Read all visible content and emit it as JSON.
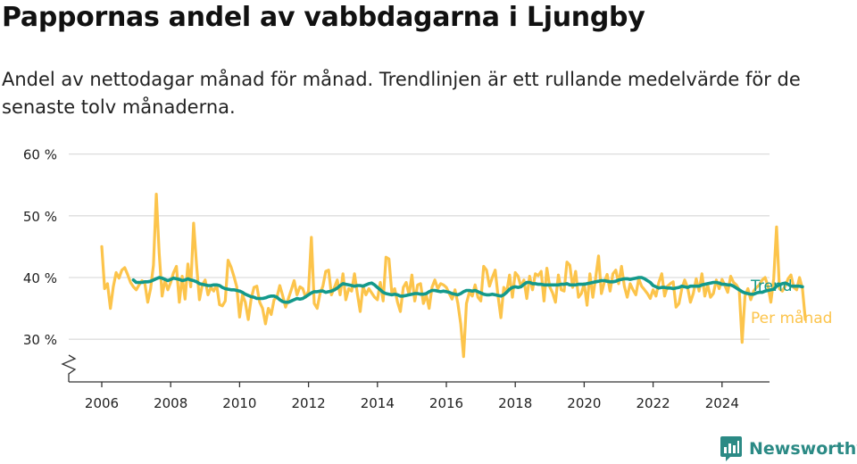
{
  "title": "Pappornas andel av vabbdagarna i Ljungby",
  "subtitle": "Andel av nettodagar månad för månad. Trendlinjen är ett rullande medelvärde för de senaste tolv månaderna.",
  "brand": {
    "name": "Newsworthy",
    "logo_icon": "bar-chart-logo-icon"
  },
  "colors": {
    "monthly": "#fcc44b",
    "trend": "#13998b",
    "grid": "#dddddd",
    "axis": "#333333"
  },
  "chart_data": {
    "type": "line",
    "x_unit": "month",
    "y_unit": "%",
    "ylim": [
      25,
      60
    ],
    "yticks": [
      30,
      40,
      50,
      60
    ],
    "ytick_labels": [
      "30 %",
      "40 %",
      "50 %",
      "60 %"
    ],
    "y_axis_break": true,
    "xticks": [
      2006,
      2008,
      2010,
      2012,
      2014,
      2016,
      2018,
      2020,
      2022,
      2024
    ],
    "xtick_labels": [
      "2006",
      "2008",
      "2010",
      "2012",
      "2014",
      "2016",
      "2018",
      "2020",
      "2022",
      "2024"
    ],
    "grid": "horizontal",
    "legend": "inline labels at line ends (right)",
    "series": [
      {
        "name": "Per månad",
        "start": "2006-01",
        "values": [
          45.0,
          38.2,
          39.0,
          35.0,
          38.5,
          40.8,
          39.9,
          41.2,
          41.6,
          40.5,
          39.2,
          38.5,
          38.0,
          38.8,
          39.5,
          39.0,
          36.0,
          38.2,
          42.0,
          53.5,
          44.0,
          37.0,
          39.6,
          38.0,
          39.2,
          40.8,
          41.8,
          36.0,
          40.2,
          36.5,
          42.2,
          38.5,
          48.8,
          42.0,
          36.4,
          38.8,
          39.6,
          37.2,
          38.4,
          37.8,
          38.8,
          35.6,
          35.4,
          36.2,
          42.8,
          41.7,
          40.2,
          38.5,
          33.6,
          37.2,
          36.0,
          33.2,
          36.5,
          38.4,
          38.6,
          36.0,
          35.0,
          32.5,
          35.0,
          34.0,
          36.4,
          36.8,
          38.7,
          37.1,
          35.2,
          36.6,
          38.0,
          39.5,
          37.2,
          38.5,
          38.2,
          36.8,
          37.8,
          46.5,
          35.8,
          35.0,
          37.4,
          38.6,
          41.0,
          41.2,
          37.2,
          38.4,
          39.6,
          37.2,
          40.6,
          36.4,
          38.2,
          37.8,
          40.6,
          37.4,
          34.5,
          38.6,
          37.2,
          38.2,
          37.5,
          36.8,
          36.4,
          39.2,
          36.2,
          43.3,
          43.0,
          37.5,
          38.2,
          36.0,
          34.5,
          38.4,
          39.2,
          37.2,
          40.4,
          36.2,
          38.8,
          39.0,
          35.8,
          37.2,
          35.0,
          38.4,
          39.6,
          38.2,
          39.0,
          38.8,
          38.4,
          37.4,
          36.5,
          38.0,
          35.8,
          32.5,
          27.2,
          35.8,
          37.6,
          37.0,
          38.8,
          36.8,
          36.2,
          41.8,
          41.2,
          38.6,
          40.0,
          41.2,
          37.0,
          33.5,
          38.4,
          37.6,
          40.4,
          36.8,
          40.8,
          40.2,
          38.5,
          39.6,
          36.6,
          40.2,
          38.0,
          40.6,
          40.3,
          41.0,
          36.2,
          41.5,
          38.5,
          37.5,
          36.0,
          40.4,
          38.0,
          37.8,
          42.5,
          42.0,
          38.4,
          41.0,
          36.8,
          37.4,
          39.0,
          35.5,
          40.6,
          36.8,
          40.0,
          43.5,
          37.4,
          39.2,
          40.5,
          37.8,
          40.6,
          41.2,
          39.0,
          41.8,
          38.6,
          36.8,
          39.0,
          38.0,
          37.2,
          39.8,
          38.6,
          38.0,
          37.4,
          36.6,
          38.0,
          37.0,
          39.2,
          40.6,
          37.0,
          38.6,
          39.0,
          39.3,
          35.2,
          35.8,
          38.2,
          39.6,
          38.4,
          36.0,
          37.4,
          39.8,
          37.8,
          40.6,
          37.0,
          38.8,
          36.8,
          37.4,
          39.6,
          38.2,
          39.7,
          38.7,
          37.6,
          40.2,
          39.2,
          38.8,
          38.0,
          29.5,
          37.0,
          38.2,
          36.4,
          37.8,
          38.4,
          38.8,
          39.6,
          40.0,
          38.6,
          36.0,
          39.8,
          48.2,
          38.2,
          37.8,
          38.6,
          39.8,
          40.4,
          38.4,
          38.0,
          40.0,
          38.2,
          33.2
        ]
      },
      {
        "name": "Trend",
        "start": "2006-12",
        "values": [
          39.6,
          39.2,
          39.2,
          39.2,
          39.3,
          39.3,
          39.4,
          39.6,
          39.8,
          40.0,
          39.9,
          39.7,
          39.5,
          39.7,
          39.9,
          39.8,
          39.7,
          39.5,
          39.6,
          39.8,
          39.6,
          39.5,
          39.3,
          39.0,
          38.9,
          38.8,
          38.7,
          38.7,
          38.8,
          38.8,
          38.7,
          38.4,
          38.2,
          38.1,
          38.0,
          38.0,
          37.9,
          37.8,
          37.6,
          37.3,
          37.1,
          36.9,
          36.8,
          36.6,
          36.6,
          36.6,
          36.7,
          36.9,
          37.0,
          37.0,
          36.8,
          36.4,
          36.1,
          36.0,
          36.0,
          36.2,
          36.4,
          36.6,
          36.5,
          36.6,
          36.9,
          37.2,
          37.5,
          37.7,
          37.7,
          37.8,
          37.8,
          37.6,
          37.7,
          37.8,
          38.0,
          38.3,
          38.7,
          39.0,
          38.9,
          38.8,
          38.7,
          38.6,
          38.7,
          38.7,
          38.6,
          38.8,
          39.0,
          39.1,
          38.8,
          38.4,
          38.0,
          37.6,
          37.4,
          37.3,
          37.2,
          37.3,
          37.2,
          37.0,
          37.0,
          37.1,
          37.2,
          37.3,
          37.4,
          37.4,
          37.3,
          37.3,
          37.4,
          37.7,
          37.9,
          37.9,
          37.8,
          37.7,
          37.8,
          37.7,
          37.6,
          37.4,
          37.3,
          37.2,
          37.4,
          37.7,
          37.9,
          37.9,
          37.8,
          37.9,
          37.7,
          37.5,
          37.3,
          37.2,
          37.2,
          37.3,
          37.2,
          37.1,
          37.0,
          37.2,
          37.6,
          38.1,
          38.4,
          38.5,
          38.4,
          38.5,
          38.9,
          39.2,
          39.2,
          39.0,
          39.0,
          38.9,
          38.9,
          38.8,
          38.8,
          38.8,
          38.8,
          38.8,
          38.8,
          38.9,
          38.9,
          39.0,
          38.8,
          38.8,
          38.8,
          38.9,
          38.9,
          38.9,
          39.0,
          39.1,
          39.2,
          39.3,
          39.4,
          39.5,
          39.5,
          39.4,
          39.3,
          39.3,
          39.4,
          39.6,
          39.7,
          39.8,
          39.8,
          39.7,
          39.8,
          39.9,
          40.0,
          40.0,
          39.8,
          39.5,
          39.2,
          38.7,
          38.5,
          38.3,
          38.4,
          38.4,
          38.3,
          38.3,
          38.2,
          38.3,
          38.4,
          38.6,
          38.5,
          38.4,
          38.6,
          38.6,
          38.6,
          38.6,
          38.8,
          38.9,
          39.0,
          39.1,
          39.2,
          39.2,
          39.1,
          38.9,
          38.9,
          38.8,
          38.8,
          38.6,
          38.3,
          38.0,
          37.7,
          37.5,
          37.4,
          37.3,
          37.3,
          37.5,
          37.6,
          37.6,
          37.8,
          37.9,
          38.0,
          38.1,
          38.6,
          38.8,
          39.0,
          39.1,
          38.9,
          38.6,
          38.6,
          38.6,
          38.6,
          38.5
        ]
      }
    ]
  }
}
